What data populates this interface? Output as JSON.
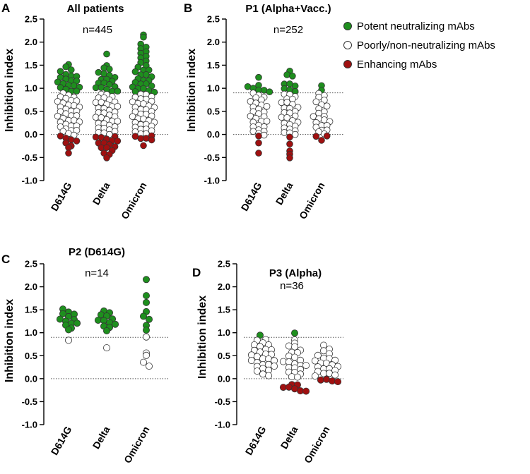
{
  "legend": {
    "items": [
      {
        "label": "Potent neutralizing mAbs",
        "color": "#1e8f1e"
      },
      {
        "label": "Poorly/non-neutralizing mAbs",
        "color": "#ffffff"
      },
      {
        "label": "Enhancing mAbs",
        "color": "#a01010"
      }
    ]
  },
  "colors": {
    "potent": "#1e8f1e",
    "poor": "#ffffff",
    "enhancing": "#a01010",
    "edge": "#333333"
  },
  "chart_data": [
    {
      "type": "scatter",
      "panel": "A",
      "title": "All patients",
      "n_label": "n=445",
      "ylabel": "Inhibition index",
      "ylim": [
        -1.0,
        2.5
      ],
      "yticks": [
        "2.5",
        "2.0",
        "1.5",
        "1.0",
        "0.5",
        "0.0",
        "-0.5",
        "-1.0"
      ],
      "threshold_lines": [
        0.0,
        0.9
      ],
      "categories": [
        "D614G",
        "Delta",
        "Omicron"
      ],
      "series": [
        {
          "name": "Potent neutralizing mAbs",
          "values": [
            [
              1.5,
              1.45,
              1.4,
              1.35,
              1.3,
              1.28,
              1.25,
              1.22,
              1.2,
              1.18,
              1.15,
              1.12,
              1.1,
              1.08,
              1.05,
              1.03,
              1.0,
              0.98,
              0.95,
              0.93
            ],
            [
              1.75,
              1.5,
              1.45,
              1.4,
              1.35,
              1.3,
              1.28,
              1.25,
              1.2,
              1.18,
              1.15,
              1.12,
              1.1,
              1.08,
              1.05,
              1.02,
              1.0,
              0.98,
              0.95,
              0.93
            ],
            [
              2.15,
              2.1,
              1.95,
              1.9,
              1.85,
              1.8,
              1.75,
              1.7,
              1.65,
              1.6,
              1.55,
              1.5,
              1.45,
              1.4,
              1.38,
              1.35,
              1.3,
              1.28,
              1.25,
              1.2,
              1.18,
              1.15,
              1.12,
              1.1,
              1.08,
              1.05,
              1.02,
              1.0,
              0.98,
              0.95,
              0.93,
              0.92
            ]
          ]
        },
        {
          "name": "Poorly/non-neutralizing mAbs",
          "values": [
            [
              0.88,
              0.85,
              0.82,
              0.8,
              0.78,
              0.75,
              0.72,
              0.7,
              0.68,
              0.65,
              0.62,
              0.6,
              0.58,
              0.55,
              0.52,
              0.5,
              0.48,
              0.45,
              0.42,
              0.4,
              0.38,
              0.35,
              0.32,
              0.3,
              0.28,
              0.25,
              0.22,
              0.2,
              0.18,
              0.15,
              0.12,
              0.1,
              0.08,
              0.05,
              0.02,
              0.0
            ],
            [
              0.88,
              0.85,
              0.82,
              0.8,
              0.78,
              0.75,
              0.72,
              0.7,
              0.68,
              0.65,
              0.62,
              0.6,
              0.58,
              0.55,
              0.52,
              0.5,
              0.48,
              0.45,
              0.42,
              0.4,
              0.38,
              0.35,
              0.32,
              0.3,
              0.28,
              0.25,
              0.22,
              0.2,
              0.18,
              0.15,
              0.12,
              0.1,
              0.08,
              0.05,
              0.02,
              0.0
            ],
            [
              0.88,
              0.85,
              0.82,
              0.8,
              0.78,
              0.75,
              0.72,
              0.7,
              0.68,
              0.65,
              0.62,
              0.6,
              0.58,
              0.55,
              0.52,
              0.5,
              0.48,
              0.45,
              0.42,
              0.4,
              0.38,
              0.35,
              0.32,
              0.3,
              0.28,
              0.25,
              0.22,
              0.2,
              0.18,
              0.15,
              0.12,
              0.1,
              0.08,
              0.05,
              0.02,
              0.0
            ]
          ]
        },
        {
          "name": "Enhancing mAbs",
          "values": [
            [
              -0.05,
              -0.08,
              -0.1,
              -0.15,
              -0.2,
              -0.25,
              -0.3,
              -0.42
            ],
            [
              -0.03,
              -0.05,
              -0.08,
              -0.1,
              -0.12,
              -0.15,
              -0.18,
              -0.2,
              -0.22,
              -0.25,
              -0.28,
              -0.3,
              -0.35,
              -0.4,
              -0.45,
              -0.5
            ],
            [
              -0.03,
              -0.05,
              -0.08,
              -0.1,
              -0.12,
              -0.25
            ]
          ]
        }
      ]
    },
    {
      "type": "scatter",
      "panel": "B",
      "title": "P1 (Alpha+Vacc.)",
      "n_label": "n=252",
      "ylabel": "Inhibition index",
      "ylim": [
        -1.0,
        2.5
      ],
      "yticks": [
        "2.5",
        "2.0",
        "1.5",
        "1.0",
        "0.5",
        "0.0",
        "-0.5",
        "-1.0"
      ],
      "threshold_lines": [
        0.0,
        0.9
      ],
      "categories": [
        "D614G",
        "Delta",
        "Omicron"
      ],
      "series": [
        {
          "name": "Potent neutralizing mAbs",
          "values": [
            [
              1.22,
              1.05,
              1.02,
              1.0,
              0.98,
              0.95,
              0.93
            ],
            [
              1.38,
              1.3,
              1.25,
              1.1,
              1.08,
              1.05,
              1.0,
              0.95,
              0.93
            ],
            [
              1.05,
              0.95
            ]
          ]
        },
        {
          "name": "Poorly/non-neutralizing mAbs",
          "values": [
            [
              0.88,
              0.85,
              0.82,
              0.78,
              0.75,
              0.7,
              0.68,
              0.65,
              0.6,
              0.58,
              0.55,
              0.5,
              0.48,
              0.45,
              0.4,
              0.38,
              0.35,
              0.3,
              0.28,
              0.25,
              0.2,
              0.18,
              0.15,
              0.1,
              0.08,
              0.05,
              0.02,
              0.0
            ],
            [
              0.88,
              0.85,
              0.82,
              0.78,
              0.75,
              0.7,
              0.68,
              0.65,
              0.6,
              0.58,
              0.55,
              0.5,
              0.48,
              0.45,
              0.4,
              0.38,
              0.35,
              0.3,
              0.28,
              0.25,
              0.2,
              0.18,
              0.15,
              0.1,
              0.08,
              0.05,
              0.02,
              0.0
            ],
            [
              0.88,
              0.85,
              0.8,
              0.75,
              0.7,
              0.65,
              0.6,
              0.55,
              0.5,
              0.45,
              0.4,
              0.38,
              0.35,
              0.3,
              0.28,
              0.25,
              0.2,
              0.18,
              0.15,
              0.1,
              0.08,
              0.05,
              0.02
            ]
          ]
        },
        {
          "name": "Enhancing mAbs",
          "values": [
            [
              -0.2,
              -0.42,
              -0.05
            ],
            [
              -0.05,
              -0.2,
              -0.35,
              -0.42,
              -0.5
            ],
            [
              -0.05,
              -0.12,
              -0.05
            ]
          ]
        }
      ]
    },
    {
      "type": "scatter",
      "panel": "C",
      "title": "P2 (D614G)",
      "n_label": "n=14",
      "ylabel": "Inhibition index",
      "ylim": [
        -1.0,
        2.5
      ],
      "yticks": [
        "2.5",
        "2.0",
        "1.5",
        "1.0",
        "0.5",
        "0.0",
        "-0.5",
        "-1.0"
      ],
      "threshold_lines": [
        0.0,
        0.9
      ],
      "categories": [
        "D614G",
        "Delta",
        "Omicron"
      ],
      "series": [
        {
          "name": "Potent neutralizing mAbs",
          "values": [
            [
              1.5,
              1.45,
              1.42,
              1.4,
              1.35,
              1.3,
              1.28,
              1.25,
              1.22,
              1.2,
              1.15,
              1.1,
              1.05
            ],
            [
              1.48,
              1.42,
              1.4,
              1.35,
              1.3,
              1.28,
              1.25,
              1.22,
              1.2,
              1.15,
              1.1,
              1.05
            ],
            [
              2.15,
              1.8,
              1.65,
              1.45,
              1.35,
              1.3,
              1.15,
              1.05
            ]
          ]
        },
        {
          "name": "Poorly/non-neutralizing mAbs",
          "values": [
            [
              0.82
            ],
            [
              0.68
            ],
            [
              0.9,
              0.55,
              0.5,
              0.35,
              0.28
            ]
          ]
        },
        {
          "name": "Enhancing mAbs",
          "values": [
            [],
            [],
            []
          ]
        }
      ]
    },
    {
      "type": "scatter",
      "panel": "D",
      "title": "P3 (Alpha)",
      "n_label": "n=36",
      "ylabel": "Inhibition index",
      "ylim": [
        -1.0,
        2.5
      ],
      "yticks": [
        "2.5",
        "2.0",
        "1.5",
        "1.0",
        "0.5",
        "0.0",
        "-0.5",
        "-1.0"
      ],
      "threshold_lines": [
        0.0,
        0.9
      ],
      "categories": [
        "D614G",
        "Delta",
        "Omicron"
      ],
      "series": [
        {
          "name": "Potent neutralizing mAbs",
          "values": [
            [
              0.93
            ],
            [
              1.0
            ],
            []
          ]
        },
        {
          "name": "Poorly/non-neutralizing mAbs",
          "values": [
            [
              0.85,
              0.82,
              0.78,
              0.75,
              0.72,
              0.7,
              0.65,
              0.62,
              0.6,
              0.58,
              0.55,
              0.52,
              0.5,
              0.48,
              0.45,
              0.42,
              0.4,
              0.38,
              0.35,
              0.32,
              0.3,
              0.28,
              0.25,
              0.22,
              0.2,
              0.15,
              0.1,
              0.08
            ],
            [
              0.85,
              0.78,
              0.72,
              0.68,
              0.62,
              0.58,
              0.55,
              0.5,
              0.45,
              0.4,
              0.38,
              0.35,
              0.32,
              0.3,
              0.28,
              0.25,
              0.22,
              0.2,
              0.15,
              0.12,
              0.1,
              0.05,
              0.02
            ],
            [
              0.72,
              0.65,
              0.6,
              0.55,
              0.5,
              0.45,
              0.42,
              0.4,
              0.38,
              0.35,
              0.32,
              0.3,
              0.28,
              0.25,
              0.22,
              0.2,
              0.18,
              0.15,
              0.12,
              0.1,
              0.08,
              0.05
            ]
          ]
        },
        {
          "name": "Enhancing mAbs",
          "values": [
            [],
            [
              -0.12,
              -0.15,
              -0.18,
              -0.2,
              -0.22,
              -0.25,
              -0.28
            ],
            [
              -0.02,
              -0.03,
              -0.05,
              -0.05
            ]
          ]
        }
      ]
    }
  ]
}
